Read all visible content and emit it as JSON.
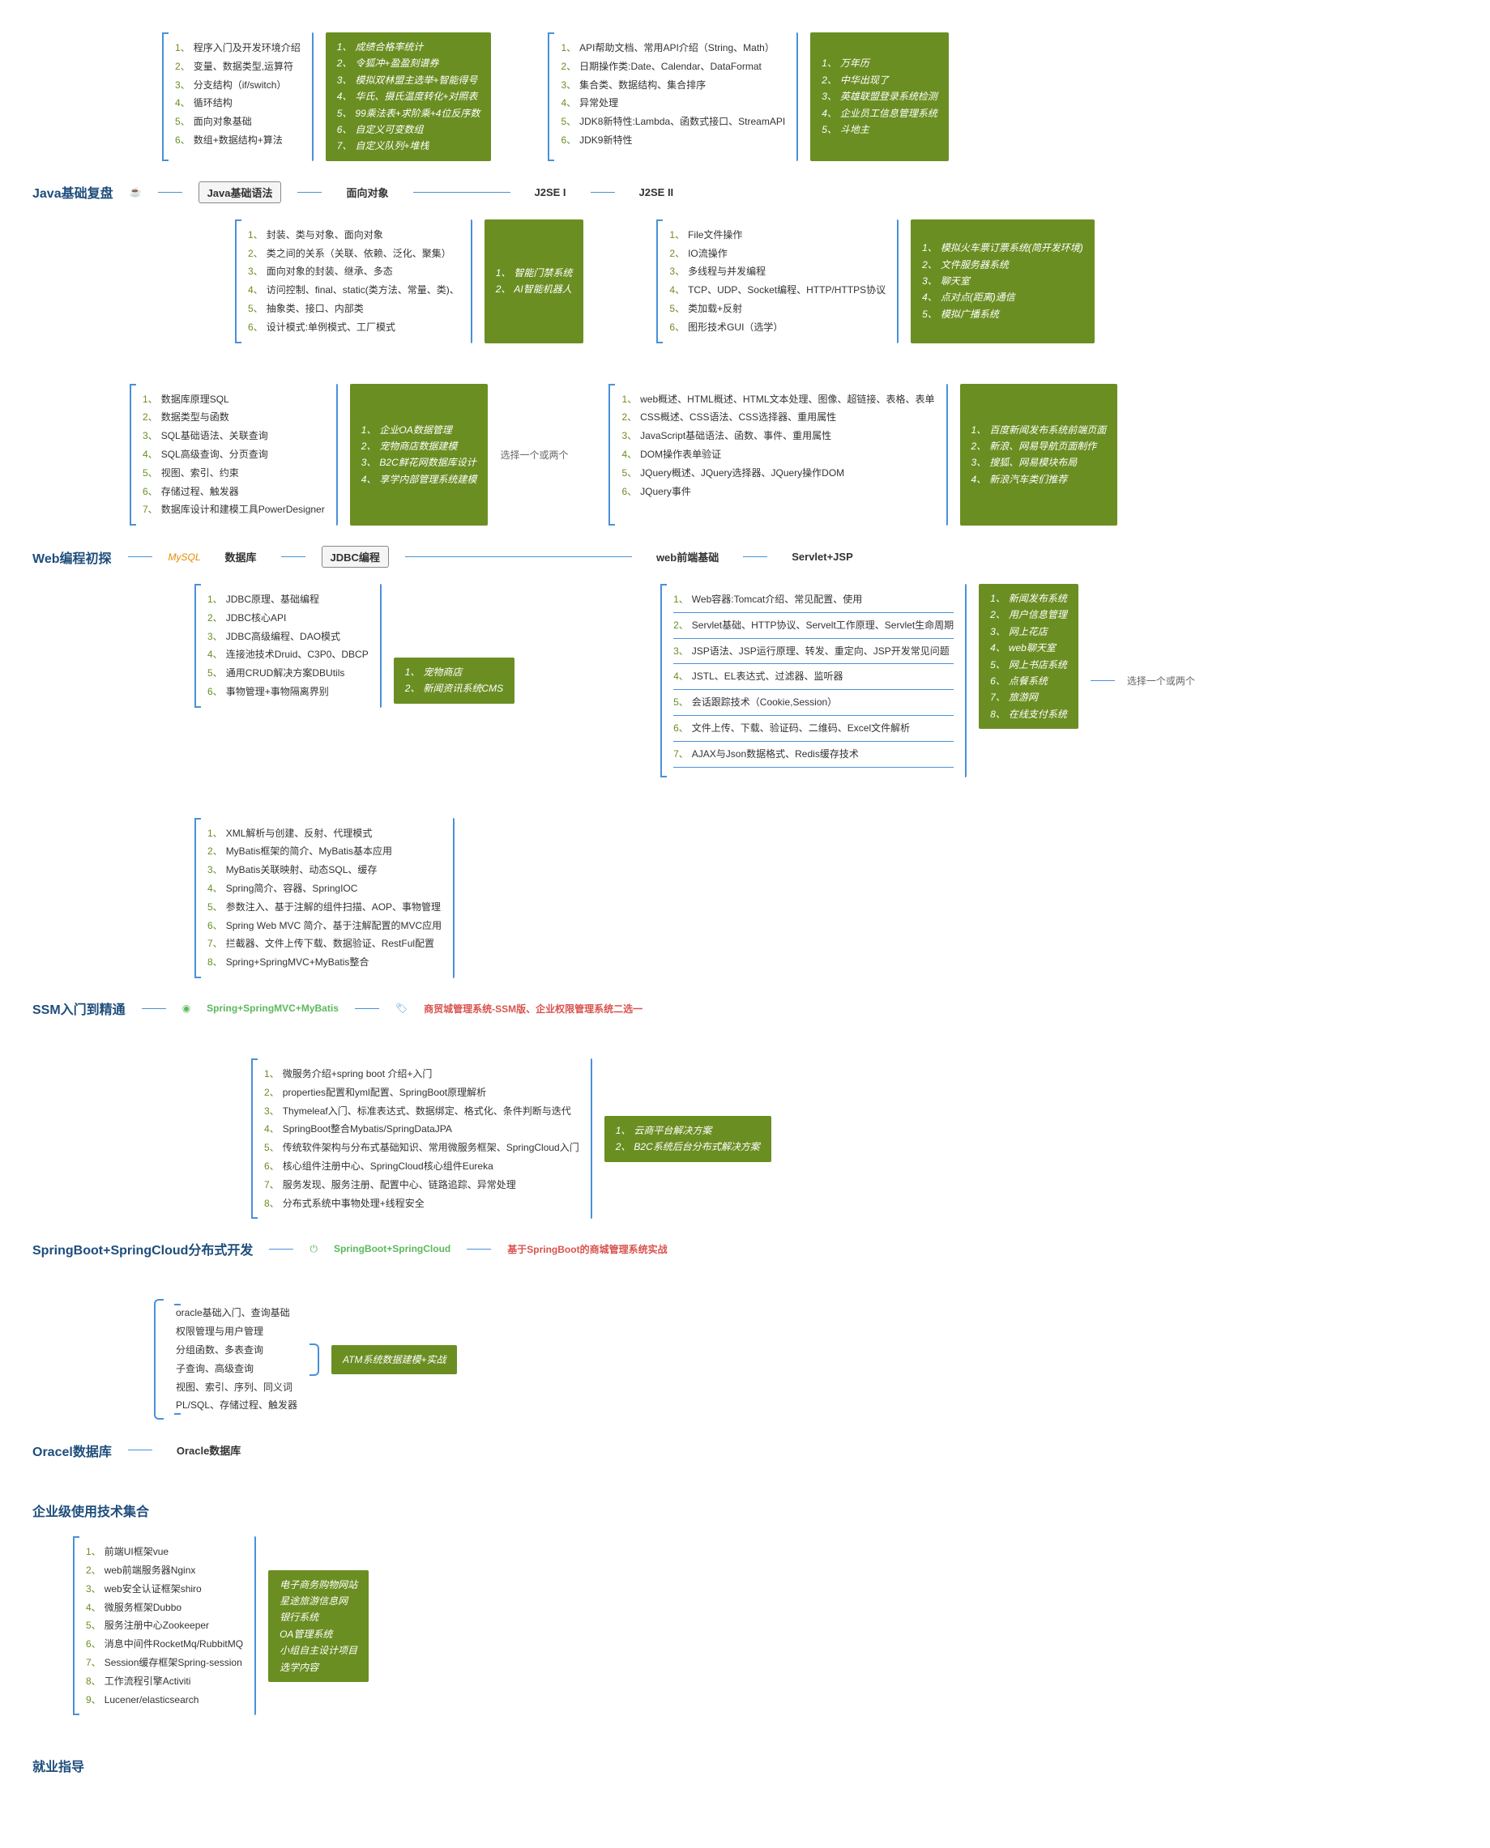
{
  "colors": {
    "line": "#4a90d9",
    "green_bg": "#6b8e23",
    "white": "#ffffff",
    "title": "#1e4d7b",
    "num": "#6b8e23",
    "red": "#d9534f",
    "green_text": "#5cb85c"
  },
  "fonts": {
    "body": 12,
    "title": 16,
    "node": 13
  },
  "sections": {
    "s1": {
      "title": "Java基础复盘",
      "n_syntax": "Java基础语法",
      "n_oop": "面向对象",
      "n_j2se1": "J2SE I",
      "n_j2se2": "J2SE II",
      "top_left": [
        "程序入门及开发环境介绍",
        "变量、数据类型,运算符",
        "分支结构（if/switch）",
        "循环结构",
        "面向对象基础",
        "数组+数据结构+算法"
      ],
      "top_left_g": [
        "成绩合格率统计",
        "令狐冲+盈盈刻谱券",
        "模拟双林盟主选举+智能得号",
        "华氏、摄氏温度转化+对照表",
        "99乘法表+求阶乘+4位反序数",
        "自定义可变数组",
        "自定义队列+堆栈"
      ],
      "top_mid": [
        "API帮助文档、常用API介绍（String、Math）",
        "日期操作类:Date、Calendar、DataFormat",
        "集合类、数据结构、集合排序",
        "异常处理",
        "JDK8新特性:Lambda、函数式接口、StreamAPI",
        "JDK9新特性"
      ],
      "top_right_g": [
        "万年历",
        "中华出现了",
        "英雄联盟登录系统检测",
        "企业员工信息管理系统",
        "斗地主"
      ],
      "bot_left": [
        "封装、类与对象、面向对象",
        "类之间的关系（关联、依赖、泛化、聚集）",
        "面向对象的封装、继承、多态",
        "访问控制、final、static(类方法、常量、类)、",
        "抽象类、接口、内部类",
        "设计模式:单例模式、工厂模式"
      ],
      "bot_left_g": [
        "智能门禁系统",
        "AI智能机器人"
      ],
      "bot_mid": [
        "File文件操作",
        "IO流操作",
        "多线程与并发编程",
        "TCP、UDP、Socket编程、HTTP/HTTPS协议",
        "类加载+反射",
        "图形技术GUI（选学）"
      ],
      "bot_right_g": [
        "模拟火车票订票系统(简开发环境)",
        "文件服务器系统",
        "聊天室",
        "点对点(距离)通信",
        "模拟广播系统"
      ]
    },
    "s2": {
      "title": "Web编程初探",
      "mysql": "MySQL",
      "n_db": "数据库",
      "n_jdbc": "JDBC编程",
      "n_web": "web前端基础",
      "n_servlet": "Servlet+JSP",
      "choose": "选择一个或两个",
      "choose2": "选择一个或两个",
      "db_list": [
        "数据库原理SQL",
        "数据类型与函数",
        "SQL基础语法、关联查询",
        "SQL高级查询、分页查询",
        "视图、索引、约束",
        "存储过程、触发器",
        "数据库设计和建模工具PowerDesigner"
      ],
      "db_g": [
        "企业OA数据管理",
        "宠物商店数据建模",
        "B2C鲜花网数据库设计",
        "享学内部管理系统建模"
      ],
      "jdbc_list": [
        "JDBC原理、基础编程",
        "JDBC核心API",
        "JDBC高级编程、DAO模式",
        "连接池技术Druid、C3P0、DBCP",
        "通用CRUD解决方案DBUtils",
        "事物管理+事物隔离界别"
      ],
      "jdbc_g": [
        "宠物商店",
        "新闻资讯系统CMS"
      ],
      "web_list": [
        "web概述、HTML概述、HTML文本处理、图像、超链接、表格、表单",
        "CSS概述、CSS语法、CSS选择器、重用属性",
        "JavaScript基础语法、函数、事件、重用属性",
        "DOM操作表单验证",
        "JQuery概述、JQuery选择器、JQuery操作DOM",
        "JQuery事件"
      ],
      "web_g": [
        "百度新闻发布系统前端页面",
        "新浪、网易导航页面制作",
        "搜狐、网易模块布局",
        "新浪汽车类们推荐"
      ],
      "servlet_list": [
        "Web容器:Tomcat介绍、常见配置、使用",
        "Servlet基础、HTTP协议、Servelt工作原理、Servlet生命周期",
        "JSP语法、JSP运行原理、转发、重定向、JSP开发常见问题",
        "JSTL、EL表达式、过滤器、监听器",
        "会话跟踪技术（Cookie,Session）",
        "文件上传、下载、验证码、二维码、Excel文件解析",
        "AJAX与Json数据格式、Redis缓存技术"
      ],
      "servlet_g": [
        "新闻发布系统",
        "用户信息管理",
        "网上花店",
        "web聊天室",
        "网上书店系统",
        "点餐系统",
        "旅游网",
        "在线支付系统"
      ]
    },
    "s3": {
      "title": "SSM入门到精通",
      "n_ssm": "Spring+SpringMVC+MyBatis",
      "proj": "商贸城管理系统-SSM版、企业权限管理系统二选一",
      "list": [
        "XML解析与创建、反射、代理模式",
        "MyBatis框架的简介、MyBatis基本应用",
        "MyBatis关联映射、动态SQL、缓存",
        "Spring简介、容器、SpringIOC",
        "参数注入、基于注解的组件扫描、AOP、事物管理",
        "Spring Web MVC 简介、基于注解配置的MVC应用",
        "拦截器、文件上传下载、数据验证、RestFul配置",
        "Spring+SpringMVC+MyBatis整合"
      ]
    },
    "s4": {
      "title": "SpringBoot+SpringCloud分布式开发",
      "n_sbc": "SpringBoot+SpringCloud",
      "proj": "基于SpringBoot的商城管理系统实战",
      "list": [
        "微服务介绍+spring boot 介绍+入门",
        "properties配置和yml配置、SpringBoot原理解析",
        "Thymeleaf入门、标准表达式、数据绑定、格式化、条件判断与迭代",
        "SpringBoot整合Mybatis/SpringDataJPA",
        "传统软件架构与分布式基础知识、常用微服务框架、SpringCloud入门",
        "核心组件注册中心、SpringCloud核心组件Eureka",
        "服务发现、服务注册、配置中心、链路追踪、异常处理",
        "分布式系统中事物处理+线程安全"
      ],
      "g": [
        "云商平台解决方案",
        "B2C系统后台分布式解决方案"
      ]
    },
    "s5": {
      "title": "Oracel数据库",
      "n_oracle": "Oracle数据库",
      "list": [
        "oracle基础入门、查询基础",
        "权限管理与用户管理",
        "分组函数、多表查询",
        "子查询、高级查询",
        "视图、索引、序列、同义词",
        "PL/SQL、存储过程、触发器"
      ],
      "g": [
        "ATM系统数据建模+实战"
      ]
    },
    "s6": {
      "title": "企业级使用技术集合",
      "list": [
        "前端UI框架vue",
        "web前端服务器Nginx",
        "web安全认证框架shiro",
        "微服务框架Dubbo",
        "服务注册中心Zookeeper",
        "消息中间件RocketMq/RubbitMQ",
        "Session缓存框架Spring-session",
        "工作流程引擎Activiti",
        "Lucener/elasticsearch"
      ],
      "g": [
        "电子商务购物网站",
        "星途旅游信息网",
        "银行系统",
        "OA管理系统",
        "小组自主设计项目",
        "选学内容"
      ]
    },
    "s7": {
      "title": "就业指导"
    }
  }
}
